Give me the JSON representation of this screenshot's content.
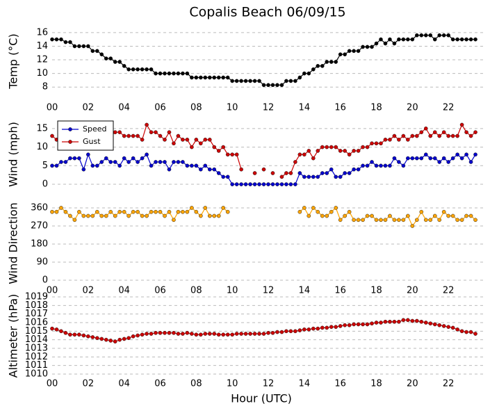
{
  "chart_data": [
    {
      "type": "line",
      "title": "Copalis Beach 06/09/15",
      "ylabel": "Temp (°C)",
      "x": [
        0,
        0.25,
        0.5,
        0.75,
        1,
        1.25,
        1.5,
        1.75,
        2,
        2.25,
        2.5,
        2.75,
        3,
        3.25,
        3.5,
        3.75,
        4,
        4.25,
        4.5,
        4.75,
        5,
        5.25,
        5.5,
        5.75,
        6,
        6.25,
        6.5,
        6.75,
        7,
        7.25,
        7.5,
        7.75,
        8,
        8.25,
        8.5,
        8.75,
        9,
        9.25,
        9.5,
        9.75,
        10,
        10.25,
        10.5,
        10.75,
        11,
        11.25,
        11.5,
        11.75,
        12,
        12.25,
        12.5,
        12.75,
        13,
        13.25,
        13.5,
        13.75,
        14,
        14.25,
        14.5,
        14.75,
        15,
        15.25,
        15.5,
        15.75,
        16,
        16.25,
        16.5,
        16.75,
        17,
        17.25,
        17.5,
        17.75,
        18,
        18.25,
        18.5,
        18.75,
        19,
        19.25,
        19.5,
        19.75,
        20,
        20.25,
        20.5,
        20.75,
        21,
        21.25,
        21.5,
        21.75,
        22,
        22.25,
        22.5,
        22.75,
        23,
        23.25,
        23.5
      ],
      "series": [
        {
          "color": "#000000",
          "values": [
            15,
            15,
            15,
            14.6,
            14.6,
            14,
            14,
            14,
            14,
            13.3,
            13.3,
            12.8,
            12.2,
            12.2,
            11.7,
            11.7,
            11.1,
            10.6,
            10.6,
            10.6,
            10.6,
            10.6,
            10.6,
            10,
            10,
            10,
            10,
            10,
            10,
            10,
            10,
            9.4,
            9.4,
            9.4,
            9.4,
            9.4,
            9.4,
            9.4,
            9.4,
            9.4,
            8.9,
            8.9,
            8.9,
            8.9,
            8.9,
            8.9,
            8.9,
            8.3,
            8.3,
            8.3,
            8.3,
            8.3,
            8.9,
            8.9,
            8.9,
            9.4,
            10,
            10,
            10.6,
            11.1,
            11.1,
            11.7,
            11.7,
            11.7,
            12.8,
            12.8,
            13.3,
            13.3,
            13.3,
            13.9,
            13.9,
            13.9,
            14.4,
            15,
            14.4,
            15,
            14.4,
            15,
            15,
            15,
            15,
            15.6,
            15.6,
            15.6,
            15.6,
            15,
            15.6,
            15.6,
            15.6,
            15,
            15,
            15,
            15,
            15,
            15
          ]
        }
      ],
      "xlim": [
        0,
        24
      ],
      "ylim": [
        6.8,
        16.7
      ],
      "yticks": [
        8,
        10,
        12,
        14,
        16
      ],
      "grid": true,
      "xticks": [
        {
          "value": 0,
          "label": "00"
        },
        {
          "value": 2,
          "label": "02"
        },
        {
          "value": 4,
          "label": "04"
        },
        {
          "value": 6,
          "label": "06"
        },
        {
          "value": 8,
          "label": "08"
        },
        {
          "value": 10,
          "label": "10"
        },
        {
          "value": 12,
          "label": "12"
        },
        {
          "value": 14,
          "label": "14"
        },
        {
          "value": 16,
          "label": "16"
        },
        {
          "value": 18,
          "label": "18"
        },
        {
          "value": 20,
          "label": "20"
        },
        {
          "value": 22,
          "label": "22"
        }
      ]
    },
    {
      "type": "line",
      "ylabel": "Wind (mph)",
      "legend": "upper left",
      "x": [
        0,
        0.25,
        0.5,
        0.75,
        1,
        1.25,
        1.5,
        1.75,
        2,
        2.25,
        2.5,
        2.75,
        3,
        3.25,
        3.5,
        3.75,
        4,
        4.25,
        4.5,
        4.75,
        5,
        5.25,
        5.5,
        5.75,
        6,
        6.25,
        6.5,
        6.75,
        7,
        7.25,
        7.5,
        7.75,
        8,
        8.25,
        8.5,
        8.75,
        9,
        9.25,
        9.5,
        9.75,
        10,
        10.25,
        10.5,
        10.75,
        11,
        11.25,
        11.5,
        11.75,
        12,
        12.25,
        12.5,
        12.75,
        13,
        13.25,
        13.5,
        13.75,
        14,
        14.25,
        14.5,
        14.75,
        15,
        15.25,
        15.5,
        15.75,
        16,
        16.25,
        16.5,
        16.75,
        17,
        17.25,
        17.5,
        17.75,
        18,
        18.25,
        18.5,
        18.75,
        19,
        19.25,
        19.5,
        19.75,
        20,
        20.25,
        20.5,
        20.75,
        21,
        21.25,
        21.5,
        21.75,
        22,
        22.25,
        22.5,
        22.75,
        23,
        23.25,
        23.5
      ],
      "series": [
        {
          "name": "Speed",
          "color": "#0000cc",
          "values": [
            5,
            5,
            6,
            6,
            7,
            7,
            7,
            4,
            8,
            5,
            5,
            6,
            7,
            6,
            6,
            5,
            7,
            6,
            7,
            6,
            7,
            8,
            5,
            6,
            6,
            6,
            4,
            6,
            6,
            6,
            5,
            5,
            5,
            4,
            5,
            4,
            4,
            3,
            2,
            2,
            0,
            0,
            0,
            0,
            0,
            0,
            0,
            0,
            0,
            0,
            0,
            0,
            0,
            0,
            0,
            3,
            2,
            2,
            2,
            2,
            3,
            3,
            4,
            2,
            2,
            3,
            3,
            4,
            4,
            5,
            5,
            6,
            5,
            5,
            5,
            5,
            7,
            6,
            5,
            7,
            7,
            7,
            7,
            8,
            7,
            7,
            6,
            7,
            6,
            7,
            8,
            7,
            8,
            6,
            8
          ]
        },
        {
          "name": "Gust",
          "color": "#cc0000",
          "values": [
            13,
            12,
            14,
            13,
            14,
            14,
            13,
            14,
            13,
            12,
            15,
            14,
            14,
            13,
            14,
            14,
            13,
            13,
            13,
            13,
            12,
            16,
            14,
            14,
            13,
            12,
            14,
            11,
            13,
            12,
            12,
            10,
            12,
            11,
            12,
            12,
            10,
            9,
            10,
            8,
            8,
            8,
            4,
            null,
            null,
            3,
            null,
            4,
            null,
            3,
            null,
            2,
            3,
            3,
            6,
            8,
            8,
            9,
            7,
            9,
            10,
            10,
            10,
            10,
            9,
            9,
            8,
            9,
            9,
            10,
            10,
            11,
            11,
            11,
            12,
            12,
            13,
            12,
            13,
            12,
            13,
            13,
            14,
            15,
            13,
            14,
            13,
            14,
            13,
            13,
            13,
            16,
            14,
            13,
            14
          ]
        }
      ],
      "xlim": [
        0,
        24
      ],
      "ylim": [
        -1.3,
        17.4
      ],
      "yticks": [
        0,
        5,
        10,
        15
      ],
      "grid": true
    },
    {
      "type": "line",
      "ylabel": "Wind Direction",
      "x": [
        0,
        0.25,
        0.5,
        0.75,
        1,
        1.25,
        1.5,
        1.75,
        2,
        2.25,
        2.5,
        2.75,
        3,
        3.25,
        3.5,
        3.75,
        4,
        4.25,
        4.5,
        4.75,
        5,
        5.25,
        5.5,
        5.75,
        6,
        6.25,
        6.5,
        6.75,
        7,
        7.25,
        7.5,
        7.75,
        8,
        8.25,
        8.5,
        8.75,
        9,
        9.25,
        9.5,
        9.75,
        10,
        10.25,
        10.5,
        10.75,
        11,
        11.25,
        11.5,
        11.75,
        12,
        12.25,
        12.5,
        12.75,
        13,
        13.25,
        13.5,
        13.75,
        14,
        14.25,
        14.5,
        14.75,
        15,
        15.25,
        15.5,
        15.75,
        16,
        16.25,
        16.5,
        16.75,
        17,
        17.25,
        17.5,
        17.75,
        18,
        18.25,
        18.5,
        18.75,
        19,
        19.25,
        19.5,
        19.75,
        20,
        20.25,
        20.5,
        20.75,
        21,
        21.25,
        21.5,
        21.75,
        22,
        22.25,
        22.5,
        22.75,
        23,
        23.25,
        23.5
      ],
      "series": [
        {
          "color": "#ffa500",
          "values": [
            340,
            340,
            360,
            340,
            320,
            300,
            340,
            320,
            320,
            320,
            340,
            320,
            320,
            340,
            320,
            340,
            340,
            320,
            340,
            340,
            320,
            320,
            340,
            340,
            340,
            320,
            340,
            300,
            340,
            340,
            340,
            360,
            340,
            320,
            360,
            320,
            320,
            320,
            360,
            340,
            null,
            null,
            null,
            null,
            null,
            null,
            null,
            null,
            null,
            null,
            null,
            null,
            null,
            null,
            null,
            340,
            360,
            320,
            360,
            340,
            320,
            320,
            340,
            360,
            300,
            320,
            340,
            300,
            300,
            300,
            320,
            320,
            300,
            300,
            300,
            320,
            300,
            300,
            300,
            320,
            270,
            300,
            340,
            300,
            300,
            320,
            300,
            340,
            320,
            320,
            300,
            300,
            320,
            320,
            300
          ]
        }
      ],
      "xlim": [
        0,
        24
      ],
      "ylim": [
        -24,
        384
      ],
      "yticks": [
        0,
        90,
        180,
        270,
        360
      ],
      "grid": true,
      "xticks": [
        {
          "value": 0,
          "label": "00"
        },
        {
          "value": 2,
          "label": "02"
        },
        {
          "value": 4,
          "label": "04"
        },
        {
          "value": 6,
          "label": "06"
        },
        {
          "value": 8,
          "label": "08"
        },
        {
          "value": 10,
          "label": "10"
        },
        {
          "value": 12,
          "label": "12"
        },
        {
          "value": 14,
          "label": "14"
        },
        {
          "value": 16,
          "label": "16"
        },
        {
          "value": 18,
          "label": "18"
        },
        {
          "value": 20,
          "label": "20"
        },
        {
          "value": 22,
          "label": "22"
        }
      ]
    },
    {
      "type": "line",
      "ylabel": "Altimeter (hPa)",
      "xlabel": "Hour (UTC)",
      "x": [
        0,
        0.25,
        0.5,
        0.75,
        1,
        1.25,
        1.5,
        1.75,
        2,
        2.25,
        2.5,
        2.75,
        3,
        3.25,
        3.5,
        3.75,
        4,
        4.25,
        4.5,
        4.75,
        5,
        5.25,
        5.5,
        5.75,
        6,
        6.25,
        6.5,
        6.75,
        7,
        7.25,
        7.5,
        7.75,
        8,
        8.25,
        8.5,
        8.75,
        9,
        9.25,
        9.5,
        9.75,
        10,
        10.25,
        10.5,
        10.75,
        11,
        11.25,
        11.5,
        11.75,
        12,
        12.25,
        12.5,
        12.75,
        13,
        13.25,
        13.5,
        13.75,
        14,
        14.25,
        14.5,
        14.75,
        15,
        15.25,
        15.5,
        15.75,
        16,
        16.25,
        16.5,
        16.75,
        17,
        17.25,
        17.5,
        17.75,
        18,
        18.25,
        18.5,
        18.75,
        19,
        19.25,
        19.5,
        19.75,
        20,
        20.25,
        20.5,
        20.75,
        21,
        21.25,
        21.5,
        21.75,
        22,
        22.25,
        22.5,
        22.75,
        23,
        23.25,
        23.5
      ],
      "series": [
        {
          "color": "#cc0000",
          "values": [
            1015.3,
            1015.2,
            1015.0,
            1014.8,
            1014.6,
            1014.6,
            1014.6,
            1014.5,
            1014.4,
            1014.3,
            1014.2,
            1014.1,
            1014.0,
            1013.9,
            1013.8,
            1014.0,
            1014.1,
            1014.2,
            1014.4,
            1014.5,
            1014.6,
            1014.7,
            1014.7,
            1014.8,
            1014.8,
            1014.8,
            1014.8,
            1014.8,
            1014.7,
            1014.7,
            1014.8,
            1014.7,
            1014.6,
            1014.6,
            1014.7,
            1014.7,
            1014.7,
            1014.6,
            1014.6,
            1014.6,
            1014.6,
            1014.7,
            1014.7,
            1014.7,
            1014.7,
            1014.7,
            1014.7,
            1014.7,
            1014.8,
            1014.8,
            1014.9,
            1014.9,
            1015.0,
            1015.0,
            1015.0,
            1015.1,
            1015.2,
            1015.2,
            1015.3,
            1015.3,
            1015.4,
            1015.4,
            1015.5,
            1015.5,
            1015.6,
            1015.7,
            1015.7,
            1015.8,
            1015.8,
            1015.8,
            1015.8,
            1015.9,
            1016.0,
            1016.0,
            1016.1,
            1016.1,
            1016.1,
            1016.1,
            1016.3,
            1016.3,
            1016.2,
            1016.2,
            1016.1,
            1016.0,
            1015.9,
            1015.8,
            1015.7,
            1015.6,
            1015.5,
            1015.4,
            1015.2,
            1015.0,
            1014.9,
            1014.9,
            1014.7
          ]
        }
      ],
      "xlim": [
        0,
        24
      ],
      "ylim": [
        1010,
        1019
      ],
      "yticks": [
        1010,
        1011,
        1012,
        1013,
        1014,
        1015,
        1016,
        1017,
        1018,
        1019
      ],
      "grid": true,
      "xticks": [
        {
          "value": 0,
          "label": "00"
        },
        {
          "value": 2,
          "label": "02"
        },
        {
          "value": 4,
          "label": "04"
        },
        {
          "value": 6,
          "label": "06"
        },
        {
          "value": 8,
          "label": "08"
        },
        {
          "value": 10,
          "label": "10"
        },
        {
          "value": 12,
          "label": "12"
        },
        {
          "value": 14,
          "label": "14"
        },
        {
          "value": 16,
          "label": "16"
        },
        {
          "value": 18,
          "label": "18"
        },
        {
          "value": 20,
          "label": "20"
        },
        {
          "value": 22,
          "label": "22"
        }
      ]
    }
  ]
}
